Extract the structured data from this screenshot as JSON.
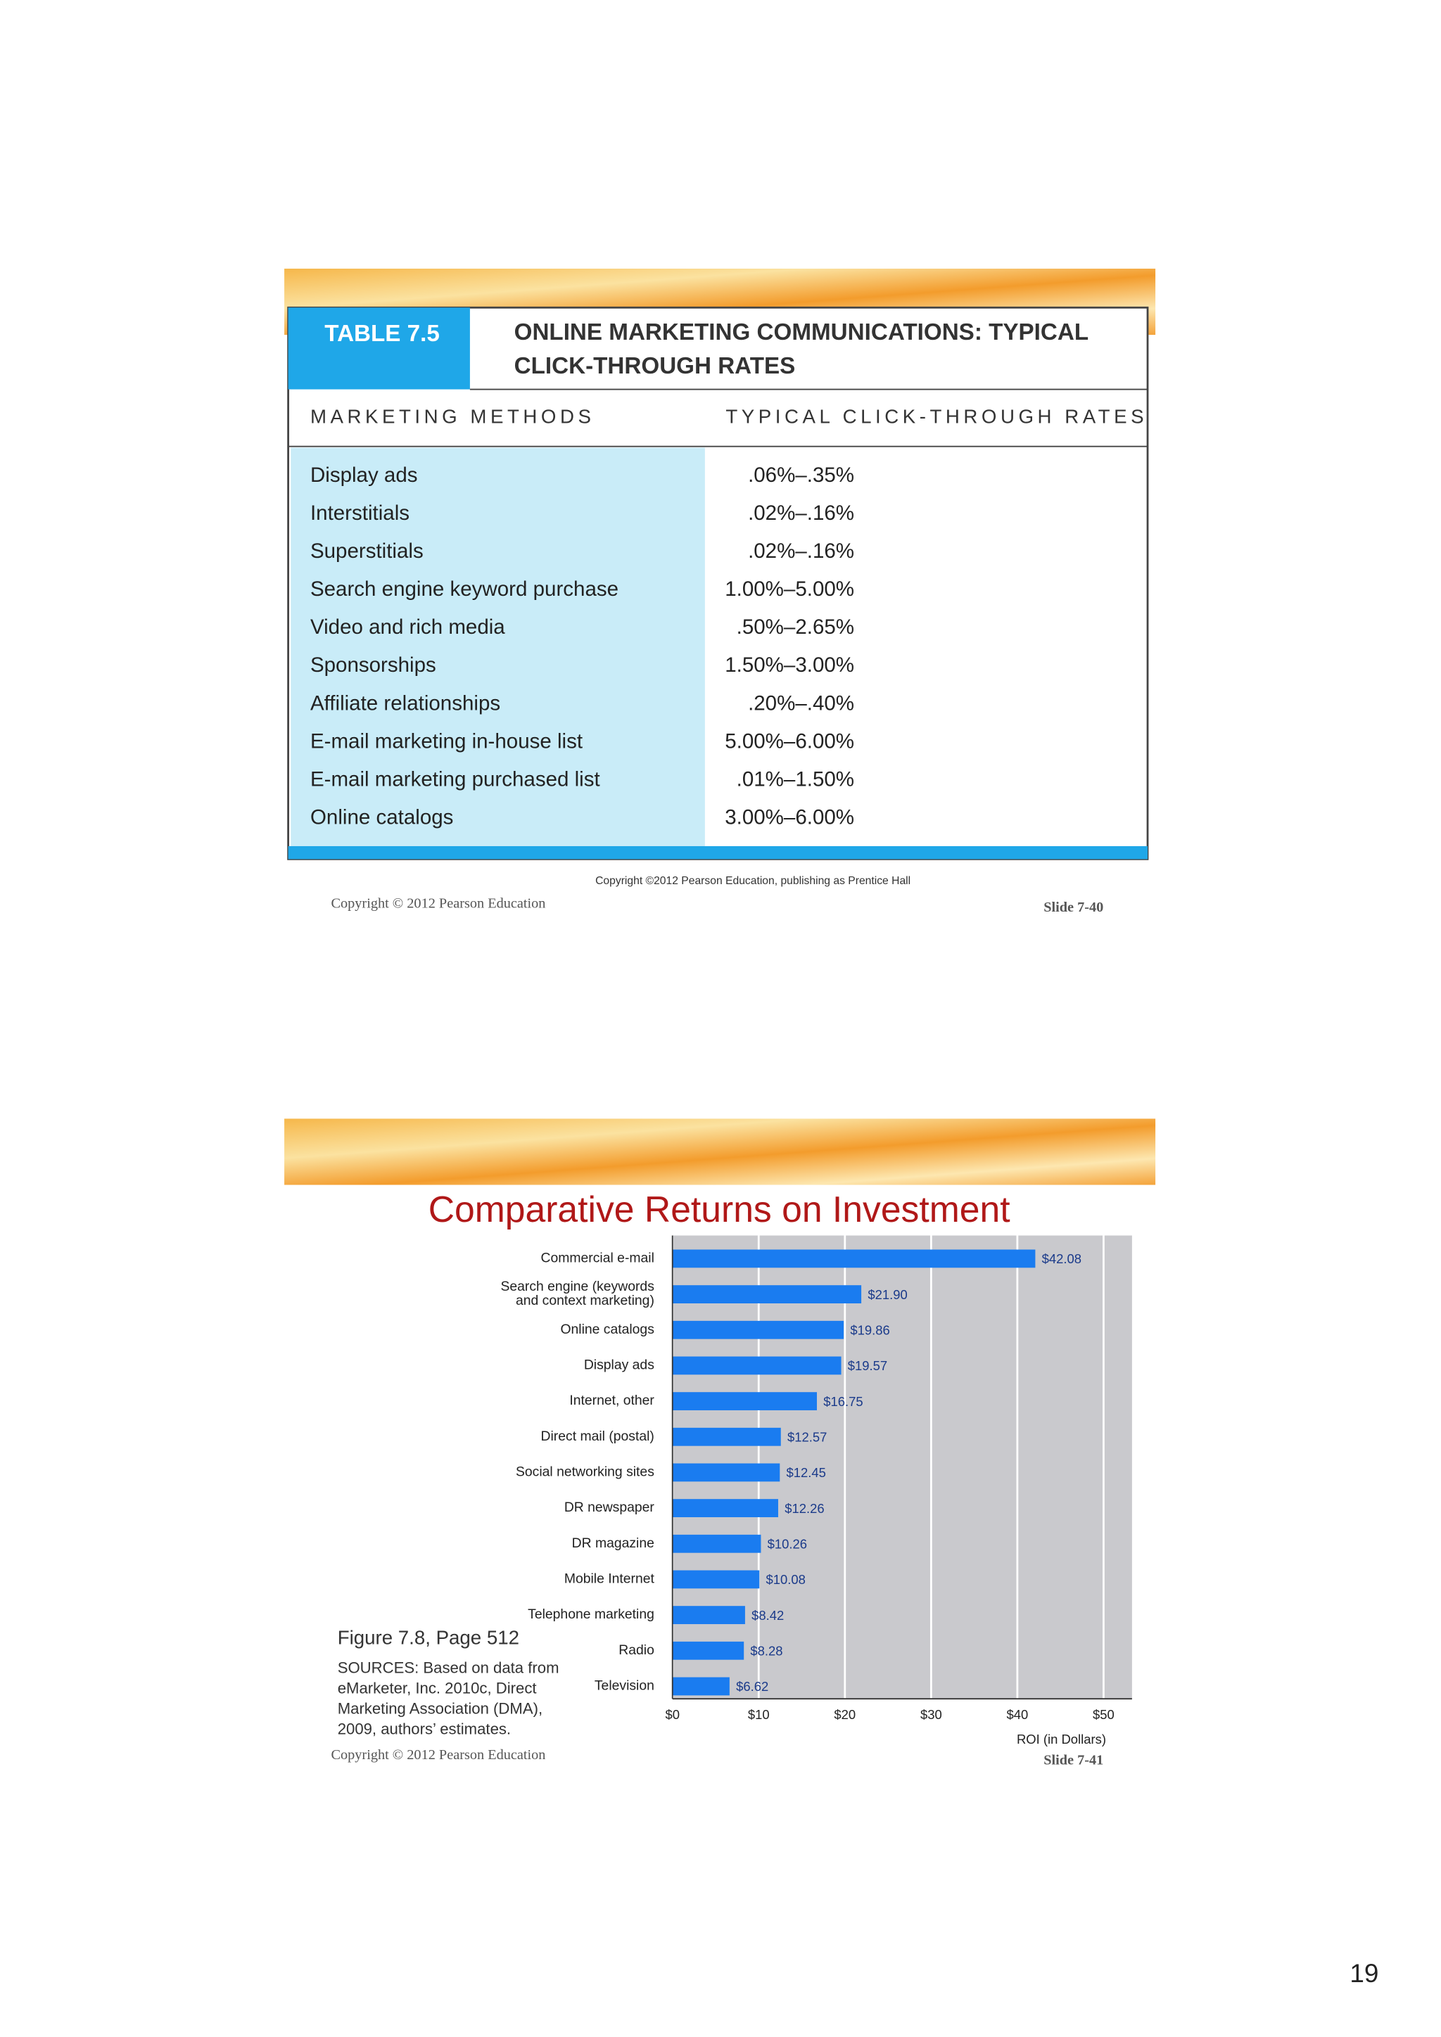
{
  "table_slide": {
    "table_label": "TABLE 7.5",
    "title_lines": [
      "ONLINE MARKETING COMMUNICATIONS: TYPICAL",
      "CLICK-THROUGH RATES"
    ],
    "columns": [
      "MARKETING METHODS",
      "TYPICAL CLICK-THROUGH RATES"
    ],
    "rows": [
      [
        "Display ads",
        ".06%–.35%"
      ],
      [
        "Interstitials",
        ".02%–.16%"
      ],
      [
        "Superstitials",
        ".02%–.16%"
      ],
      [
        "Search engine keyword purchase",
        "1.00%–5.00%"
      ],
      [
        "Video and rich media",
        ".50%–2.65%"
      ],
      [
        "Sponsorships",
        "1.50%–3.00%"
      ],
      [
        "Affiliate relationships",
        ".20%–.40%"
      ],
      [
        "E-mail marketing in-house list",
        "5.00%–6.00%"
      ],
      [
        "E-mail marketing purchased list",
        ".01%–1.50%"
      ],
      [
        "Online catalogs",
        "3.00%–6.00%"
      ]
    ],
    "table_copyright": "Copyright ©2012 Pearson Education, publishing as Prentice Hall",
    "copyright": "Copyright © 2012 Pearson Education",
    "slide": "Slide 7-40"
  },
  "chart_data": {
    "type": "bar",
    "orientation": "horizontal",
    "title": "Comparative Returns on Investment",
    "categories": [
      "Commercial e-mail",
      "Search engine (keywords\nand context marketing)",
      "Online catalogs",
      "Display ads",
      "Internet, other",
      "Direct mail (postal)",
      "Social networking sites",
      "DR newspaper",
      "DR magazine",
      "Mobile Internet",
      "Telephone marketing",
      "Radio",
      "Television"
    ],
    "values": [
      42.08,
      21.9,
      19.86,
      19.57,
      16.75,
      12.57,
      12.45,
      12.26,
      10.26,
      10.08,
      8.42,
      8.28,
      6.62
    ],
    "value_labels": [
      "$42.08",
      "$21.90",
      "$19.86",
      "$19.57",
      "$16.75",
      "$12.57",
      "$12.45",
      "$12.26",
      "$10.26",
      "$10.08",
      "$8.42",
      "$8.28",
      "$6.62"
    ],
    "color": "#1a7cf0",
    "xlim": [
      0,
      53.3
    ],
    "xticks": [
      {
        "value": 0,
        "label": "$0"
      },
      {
        "value": 10,
        "label": "$10"
      },
      {
        "value": 20,
        "label": "$20"
      },
      {
        "value": 30,
        "label": "$30"
      },
      {
        "value": 40,
        "label": "$40"
      },
      {
        "value": 50,
        "label": "$50"
      }
    ],
    "xlabel": "ROI (in Dollars)",
    "grid": true
  },
  "chart_slide": {
    "figure": "Figure 7.8, Page 512",
    "sources": [
      "SOURCES: Based on data from",
      "eMarketer, Inc. 2010c, Direct",
      "Marketing Association (DMA),",
      "2009, authors’ estimates."
    ],
    "copyright": "Copyright © 2012 Pearson Education",
    "slide": "Slide 7-41"
  },
  "page_number": "19"
}
